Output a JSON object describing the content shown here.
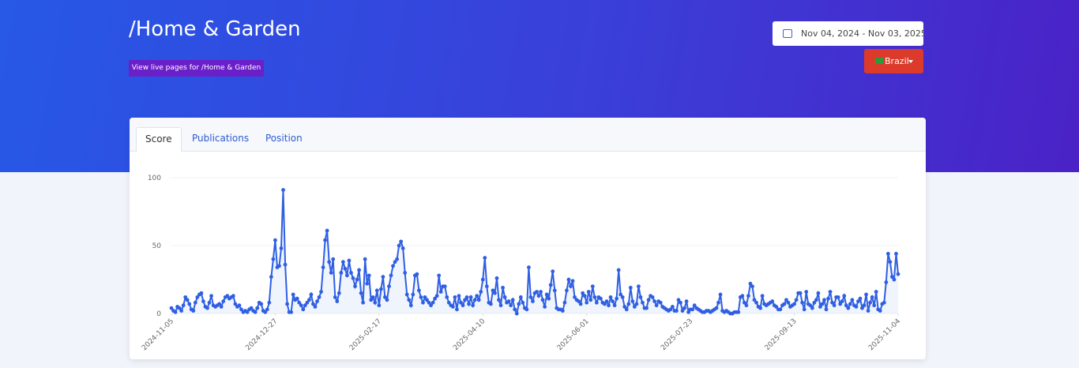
{
  "header": {
    "title": "/Home & Garden",
    "live_button": "View live pages for /Home & Garden",
    "date_range": "Nov 04, 2024 - Nov 03, 2025",
    "country": "Brazil"
  },
  "tabs": [
    "Score",
    "Publications",
    "Position"
  ],
  "chart_data": {
    "type": "line",
    "color": "#2f5fe3",
    "grid": true,
    "ylim": [
      0,
      100
    ],
    "yticks": [
      0,
      50,
      100
    ],
    "xlim": [
      0,
      364
    ],
    "xticks": [
      {
        "value": 0,
        "label": "2024-11-05"
      },
      {
        "value": 52,
        "label": "2024-12-27"
      },
      {
        "value": 104,
        "label": "2025-02-17"
      },
      {
        "value": 156,
        "label": "2025-04-10"
      },
      {
        "value": 208,
        "label": "2025-06-01"
      },
      {
        "value": 260,
        "label": "2025-07-23"
      },
      {
        "value": 312,
        "label": "2025-09-13"
      },
      {
        "value": 364,
        "label": "2025-11-04"
      }
    ],
    "values": [
      4,
      2,
      1,
      5,
      4,
      2,
      6,
      12,
      10,
      7,
      3,
      2,
      8,
      12,
      14,
      15,
      9,
      5,
      4,
      8,
      13,
      6,
      5,
      6,
      7,
      5,
      9,
      12,
      13,
      11,
      12,
      13,
      7,
      5,
      6,
      3,
      1,
      2,
      1,
      3,
      4,
      2,
      1,
      4,
      8,
      7,
      2,
      1,
      3,
      8,
      27,
      40,
      54,
      34,
      35,
      48,
      91,
      36,
      7,
      1,
      1,
      14,
      10,
      11,
      8,
      6,
      3,
      6,
      8,
      10,
      14,
      7,
      5,
      9,
      12,
      16,
      34,
      54,
      61,
      38,
      30,
      40,
      12,
      9,
      15,
      30,
      38,
      33,
      28,
      39,
      30,
      26,
      20,
      25,
      32,
      15,
      8,
      40,
      22,
      28,
      10,
      12,
      8,
      17,
      6,
      18,
      27,
      12,
      10,
      20,
      28,
      35,
      38,
      40,
      50,
      53,
      48,
      30,
      14,
      10,
      6,
      14,
      28,
      29,
      17,
      12,
      8,
      12,
      10,
      8,
      6,
      8,
      11,
      13,
      28,
      16,
      20,
      20,
      12,
      8,
      6,
      5,
      12,
      3,
      13,
      8,
      6,
      10,
      12,
      7,
      12,
      6,
      10,
      13,
      10,
      16,
      25,
      41,
      20,
      8,
      7,
      17,
      15,
      26,
      10,
      6,
      19,
      12,
      8,
      9,
      6,
      10,
      3,
      0,
      7,
      12,
      8,
      4,
      3,
      34,
      12,
      9,
      15,
      16,
      13,
      16,
      10,
      5,
      14,
      11,
      21,
      31,
      17,
      4,
      3,
      3,
      2,
      8,
      17,
      25,
      20,
      24,
      12,
      10,
      9,
      7,
      15,
      13,
      8,
      16,
      10,
      20,
      12,
      8,
      12,
      11,
      8,
      7,
      9,
      6,
      12,
      9,
      6,
      11,
      32,
      14,
      12,
      5,
      3,
      7,
      19,
      9,
      5,
      7,
      20,
      12,
      8,
      4,
      4,
      10,
      13,
      12,
      9,
      6,
      9,
      8,
      5,
      4,
      3,
      2,
      3,
      5,
      2,
      2,
      10,
      8,
      2,
      4,
      9,
      1,
      3,
      3,
      6,
      4,
      3,
      2,
      1,
      1,
      2,
      2,
      1,
      2,
      3,
      4,
      8,
      14,
      2,
      1,
      2,
      1,
      0,
      0,
      1,
      1,
      1,
      12,
      13,
      8,
      6,
      13,
      22,
      20,
      10,
      8,
      5,
      4,
      13,
      7,
      6,
      7,
      8,
      9,
      6,
      5,
      3,
      3,
      6,
      7,
      10,
      8,
      5,
      6,
      7,
      10,
      15,
      15,
      8,
      3,
      16,
      7,
      6,
      4,
      8,
      10,
      15,
      5,
      7,
      10,
      3,
      11,
      16,
      8,
      6,
      12,
      12,
      7,
      9,
      13,
      6,
      4,
      7,
      10,
      6,
      5,
      9,
      11,
      4,
      6,
      14,
      2,
      8,
      12,
      6,
      16,
      3,
      2,
      7,
      8,
      23,
      44,
      38,
      27,
      25,
      44,
      29
    ]
  }
}
